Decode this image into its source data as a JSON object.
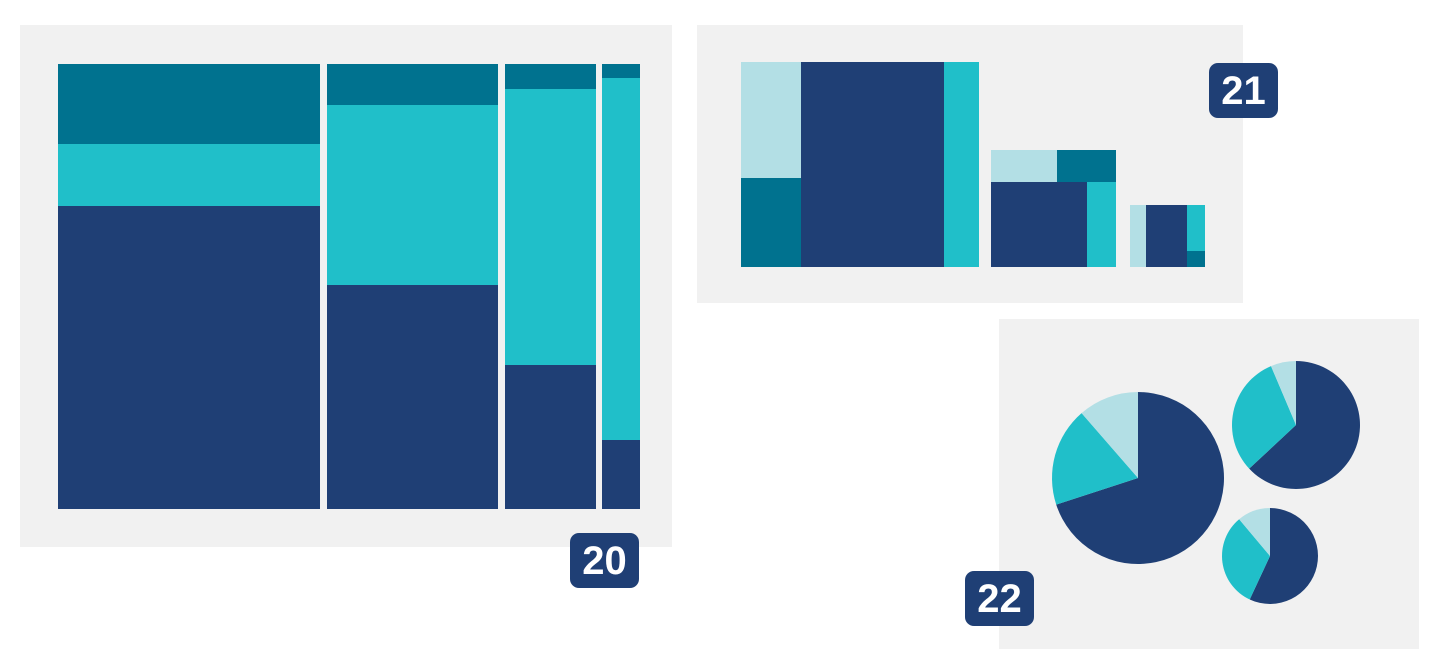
{
  "badges": [
    {
      "label": "20"
    },
    {
      "label": "21"
    },
    {
      "label": "22"
    }
  ]
}
